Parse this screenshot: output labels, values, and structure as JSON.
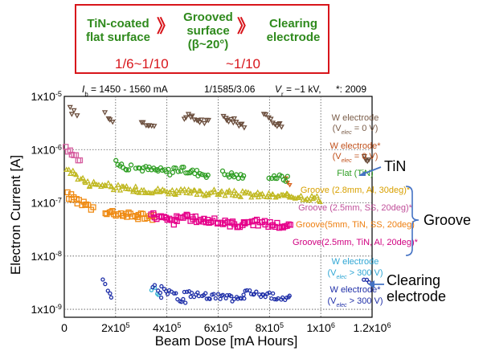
{
  "flow": {
    "item1_line1": "TiN-coated",
    "item1_line2": "flat surface",
    "item2_line1": "Grooved",
    "item2_line2": "surface",
    "item2_line3": "(β~20°)",
    "item3_line1": "Clearing",
    "item3_line2": "electrode",
    "arrow": "》",
    "ratio1": "1/6~1/10",
    "ratio2": "~1/10"
  },
  "colors": {
    "flow_green": "#2f8a1d",
    "flow_red": "#d8151b",
    "annotation_blue": "#4472c4"
  },
  "chart_data": {
    "type": "scatter",
    "xlabel": "Beam Dose [mA Hours]",
    "ylabel": "Electron Current [A]",
    "xlim": [
      0,
      1200000
    ],
    "ylim_log10": [
      -9.15,
      -5
    ],
    "log_y": true,
    "grid": true,
    "x_ticks": [
      {
        "value": 0,
        "label": "0"
      },
      {
        "value": 200000,
        "label": "2x10",
        "sup": "5"
      },
      {
        "value": 400000,
        "label": "4x10",
        "sup": "5"
      },
      {
        "value": 600000,
        "label": "6x10",
        "sup": "5"
      },
      {
        "value": 800000,
        "label": "8x10",
        "sup": "5"
      },
      {
        "value": 1000000,
        "label": "1x10",
        "sup": "6"
      },
      {
        "value": 1200000,
        "label": "1.2x10",
        "sup": "6"
      }
    ],
    "y_ticks": [
      {
        "value": -5,
        "label": "1x10",
        "sup": "-5"
      },
      {
        "value": -6,
        "label": "1x10",
        "sup": "-6"
      },
      {
        "value": -7,
        "label": "1x10",
        "sup": "-7"
      },
      {
        "value": -8,
        "label": "1x10",
        "sup": "-8"
      },
      {
        "value": -9,
        "label": "1x10",
        "sup": "-9"
      }
    ],
    "top_note": {
      "ib": "I",
      "ib_sub": "b",
      "ib_text": " = 1450 - 1560 mA",
      "ratio": "1/1585/3.06",
      "vr": "V",
      "vr_sub": "r",
      "vr_text": " = −1 kV,",
      "star": "*: 2009"
    },
    "series": [
      {
        "key": "w0",
        "marker": "tri-down",
        "color": "#6b4e3d",
        "size": 5,
        "segments": [
          [
            20000,
            50000,
            5.6e-06,
            4.5e-06
          ],
          [
            160000,
            190000,
            4.8e-06,
            3.3e-06
          ],
          [
            300000,
            350000,
            3.6e-06,
            2.6e-06
          ],
          [
            470000,
            560000,
            4.2e-06,
            3.2e-06
          ],
          [
            620000,
            700000,
            4e-06,
            2.9e-06
          ],
          [
            780000,
            850000,
            4.2e-06,
            2.7e-06
          ],
          [
            1170000,
            1190000,
            8e-07,
            6e-07
          ]
        ]
      },
      {
        "key": "w0_09",
        "marker": "tri-down",
        "color": "#d8601b",
        "size": 4,
        "segments": [
          [
            860000,
            880000,
            3.2e-07,
            2.2e-07
          ]
        ]
      },
      {
        "key": "flat",
        "marker": "circle",
        "color": "#2e9e23",
        "size": 5,
        "segments": [
          [
            200000,
            260000,
            5.5e-07,
            4.5e-07
          ],
          [
            280000,
            420000,
            4.6e-07,
            3.8e-07
          ],
          [
            430000,
            560000,
            4.4e-07,
            3.4e-07
          ],
          [
            620000,
            700000,
            3.6e-07,
            3e-07
          ],
          [
            800000,
            870000,
            3.3e-07,
            2.8e-07
          ]
        ]
      },
      {
        "key": "groove_al30",
        "marker": "tri-up",
        "color": "#c0b820",
        "size": 5,
        "segments": [
          [
            10000,
            100000,
            4.5e-07,
            2.2e-07
          ],
          [
            100000,
            280000,
            2.4e-07,
            1.7e-07
          ],
          [
            280000,
            560000,
            1.8e-07,
            1.5e-07
          ],
          [
            560000,
            880000,
            1.6e-07,
            1.3e-07
          ],
          [
            880000,
            1000000,
            1.4e-07,
            1.2e-07
          ]
        ]
      },
      {
        "key": "groove_ss20_09",
        "marker": "square",
        "color": "#d65fa0",
        "size": 6,
        "segments": [
          [
            5000,
            60000,
            1.1e-06,
            6e-07
          ]
        ]
      },
      {
        "key": "groove_tin_ss20",
        "marker": "square",
        "color": "#ef8b14",
        "size": 6,
        "segments": [
          [
            10000,
            110000,
            1.4e-07,
            8e-08
          ],
          [
            160000,
            290000,
            7e-08,
            5.5e-08
          ],
          [
            290000,
            350000,
            6e-08,
            5.2e-08
          ]
        ]
      },
      {
        "key": "groove_tin_al20_09",
        "marker": "square",
        "color": "#e5008a",
        "size": 6,
        "segments": [
          [
            340000,
            440000,
            6e-08,
            4.2e-08
          ],
          [
            440000,
            700000,
            5.5e-08,
            3.8e-08
          ],
          [
            700000,
            880000,
            4.5e-08,
            3.6e-08
          ]
        ]
      },
      {
        "key": "clr_300",
        "marker": "circle",
        "color": "#3cb6d4",
        "size": 4,
        "segments": [
          [
            340000,
            370000,
            2.5e-09,
            1.8e-09
          ]
        ]
      },
      {
        "key": "clr_300_09",
        "marker": "circle",
        "color": "#1f2fa8",
        "size": 4,
        "segments": [
          [
            150000,
            185000,
            3.2e-09,
            1.9e-09
          ],
          [
            345000,
            380000,
            2.9e-09,
            1.6e-09
          ],
          [
            380000,
            470000,
            2.4e-09,
            1.4e-09
          ],
          [
            470000,
            700000,
            2e-09,
            1.5e-09
          ],
          [
            700000,
            880000,
            2.1e-09,
            1.6e-09
          ],
          [
            1170000,
            1200000,
            3.5e-09,
            2.6e-09
          ]
        ]
      }
    ],
    "legend": [
      {
        "line1": "W electrode",
        "line2_pre": "(V",
        "line2_sub": "elec",
        "line2_post": " = 0 V)",
        "color": "#7a5c48"
      },
      {
        "line1": "W electrode*",
        "line2_pre": "(V",
        "line2_sub": "elec",
        "line2_post": " = 0 V)",
        "color": "#c0501b"
      },
      {
        "line1": "Flat (TiN)",
        "color": "#2e9e23"
      },
      {
        "line1": "Groove (2.8mm, Al, 30deg)*",
        "color": "#d8a000"
      },
      {
        "line1": "Groove (2.5mm, SS, 20deg)*",
        "color": "#c04f9a"
      },
      {
        "line1": "Groove(5mm, TiN, SS, 20deg)",
        "color": "#ee7f10"
      },
      {
        "line1": "Groove(2.5mm, TiN, Al, 20deg)*",
        "color": "#d00080"
      },
      {
        "line1": "W electrode",
        "line2_pre": "(V",
        "line2_sub": "elec",
        "line2_post": " > 300 V)",
        "color": "#2fa6d4"
      },
      {
        "line1": "W electrode*",
        "line2_pre": "(V",
        "line2_sub": "elec",
        "line2_post": " > 300 V)",
        "color": "#1f2fa8"
      }
    ],
    "annotations": {
      "tin": "TiN",
      "groove": "Groove",
      "clearing1": "Clearing",
      "clearing2": "electrode"
    }
  }
}
